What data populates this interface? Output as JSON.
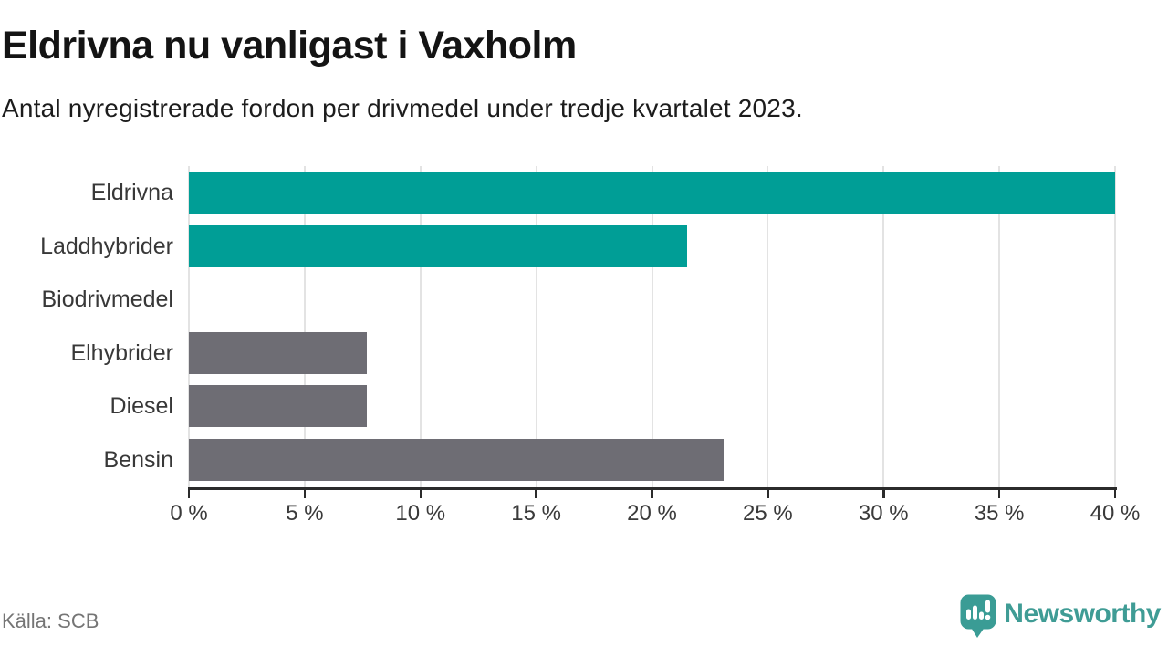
{
  "header": {
    "title": "Eldrivna nu vanligast i Vaxholm",
    "subtitle": "Antal nyregistrerade fordon per drivmedel under tredje kvartalet 2023."
  },
  "chart_data": {
    "type": "bar",
    "orientation": "horizontal",
    "title": "Eldrivna nu vanligast i Vaxholm",
    "subtitle": "Antal nyregistrerade fordon per drivmedel under tredje kvartalet 2023.",
    "categories": [
      "Eldrivna",
      "Laddhybrider",
      "Biodrivmedel",
      "Elhybrider",
      "Diesel",
      "Bensin"
    ],
    "values": [
      40,
      21.5,
      0,
      7.7,
      7.7,
      23.1
    ],
    "unit": "%",
    "bar_colors": [
      "#009e96",
      "#009e96",
      "#6e6d74",
      "#6e6d74",
      "#6e6d74",
      "#6e6d74"
    ],
    "highlight_color": "#009e96",
    "muted_color": "#6e6d74",
    "xlim": [
      0,
      40
    ],
    "x_ticks": [
      0,
      5,
      10,
      15,
      20,
      25,
      30,
      35,
      40
    ],
    "x_tick_labels": [
      "0 %",
      "5 %",
      "10 %",
      "15 %",
      "20 %",
      "25 %",
      "30 %",
      "35 %",
      "40 %"
    ],
    "grid": true,
    "gridline_color": "#e3e3e3",
    "axis_color": "#2b2b2b",
    "legend": "none"
  },
  "footer": {
    "source": "Källa: SCB",
    "brand": "Newsworthy",
    "brand_color": "#3f9c95",
    "brand_icon": "newsworthy-speech-bubble-chart-icon"
  }
}
